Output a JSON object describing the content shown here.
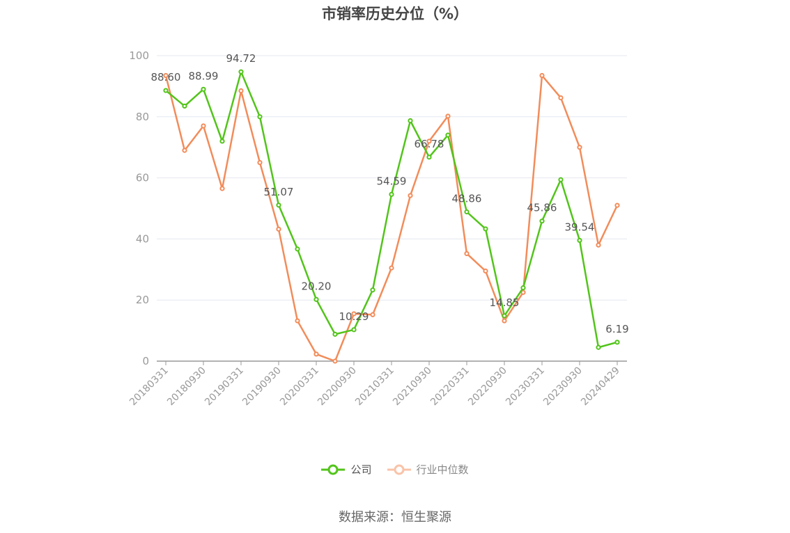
{
  "chart_data": {
    "type": "line",
    "title": "市销率历史分位（%）",
    "ylim": [
      0,
      100
    ],
    "y_ticks": [
      0,
      20,
      40,
      60,
      80,
      100
    ],
    "x_tick_labels": [
      "20180331",
      "20180930",
      "20190331",
      "20190930",
      "20200331",
      "20200930",
      "20210331",
      "20210930",
      "20220331",
      "20220930",
      "20230331",
      "20230930",
      "20240429"
    ],
    "grid": true,
    "legend_position": "bottom-center",
    "series": [
      {
        "name": "公司",
        "color": "#52c41a",
        "values": [
          88.6,
          83.5,
          88.99,
          72.0,
          94.72,
          80.0,
          51.07,
          36.7,
          20.2,
          8.8,
          10.29,
          23.3,
          54.59,
          78.7,
          66.78,
          74.0,
          48.86,
          43.3,
          14.85,
          24.0,
          45.86,
          59.4,
          39.54,
          4.5,
          6.19
        ],
        "data_labels": [
          {
            "index": 0,
            "text": "88.60"
          },
          {
            "index": 2,
            "text": "88.99"
          },
          {
            "index": 4,
            "text": "94.72"
          },
          {
            "index": 6,
            "text": "51.07"
          },
          {
            "index": 8,
            "text": "20.20"
          },
          {
            "index": 10,
            "text": "10.29"
          },
          {
            "index": 12,
            "text": "54.59"
          },
          {
            "index": 14,
            "text": "66.78"
          },
          {
            "index": 16,
            "text": "48.86"
          },
          {
            "index": 18,
            "text": "14.85"
          },
          {
            "index": 20,
            "text": "45.86"
          },
          {
            "index": 22,
            "text": "39.54"
          },
          {
            "index": 24,
            "text": "6.19"
          }
        ]
      },
      {
        "name": "行业中位数",
        "color": "#f28c5a",
        "values": [
          93.5,
          69.0,
          77.0,
          56.5,
          88.5,
          65.0,
          43.2,
          13.2,
          2.3,
          0.0,
          15.5,
          15.2,
          30.5,
          54.2,
          72.0,
          80.2,
          35.2,
          29.5,
          13.2,
          22.5,
          93.5,
          86.2,
          70.0,
          38.0,
          51.0
        ]
      }
    ]
  },
  "legend": {
    "company": "公司",
    "industry": "行业中位数"
  },
  "source_note": "数据来源：恒生聚源"
}
